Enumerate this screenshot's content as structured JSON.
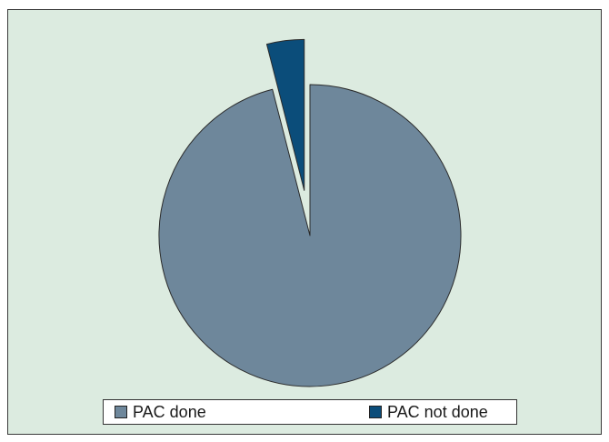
{
  "colors": {
    "background": "#dcebe0",
    "frame_border": "#3a3a3a",
    "slice_outline": "#2b2b2b"
  },
  "chart_data": {
    "type": "pie",
    "title": "",
    "grid": false,
    "legend_position": "bottom",
    "exploded_slice": "PAC not done",
    "slices": [
      {
        "label": "PAC done",
        "value": 96,
        "color": "#6e879b"
      },
      {
        "label": "PAC not done",
        "value": 4,
        "color": "#0b4d7a"
      }
    ]
  }
}
